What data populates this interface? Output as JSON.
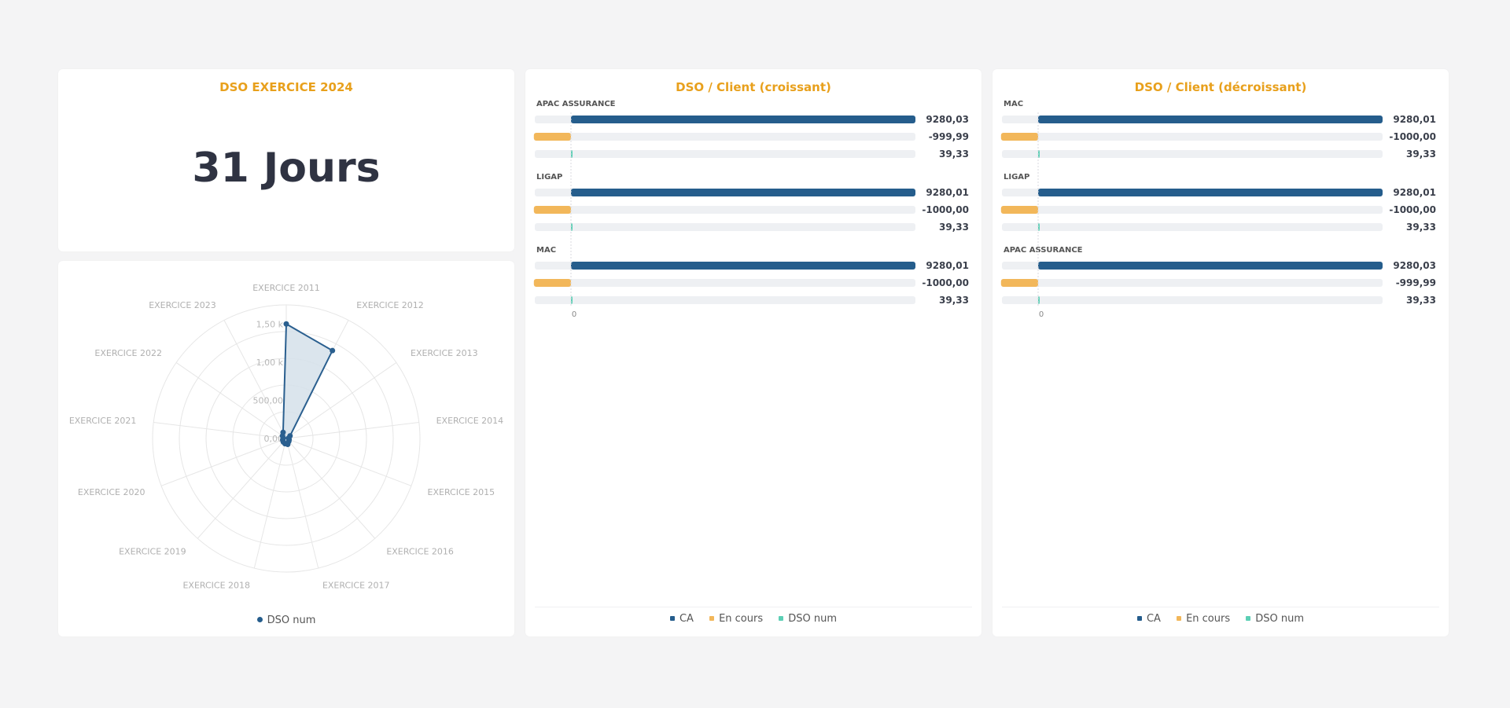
{
  "colors": {
    "title": "#e8a01c",
    "ca": "#255d8c",
    "en_cours": "#f2b75a",
    "dso": "#5ccfb5",
    "track": "#eef0f3",
    "radar_line": "#2a5f8f",
    "radar_fill": "#d5e0ea"
  },
  "kpi": {
    "title": "DSO EXERCICE 2024",
    "value": "31 Jours"
  },
  "radar": {
    "legend": "DSO num",
    "axis_labels": [
      "EXERCICE 2011",
      "EXERCICE 2012",
      "EXERCICE 2013",
      "EXERCICE 2014",
      "EXERCICE 2015",
      "EXERCICE 2016",
      "EXERCICE 2017",
      "EXERCICE 2018",
      "EXERCICE 2019",
      "EXERCICE 2020",
      "EXERCICE 2021",
      "EXERCICE 2022",
      "EXERCICE 2023"
    ],
    "tick_labels": [
      "0,00",
      "500,00",
      "1,00 k",
      "1,50 k"
    ]
  },
  "bars_asc": {
    "title": "DSO / Client (croissant)",
    "axis_zero": "0",
    "legend": [
      "CA",
      "En cours",
      "DSO num"
    ]
  },
  "bars_desc": {
    "title": "DSO / Client (décroissant)",
    "axis_zero": "0",
    "legend": [
      "CA",
      "En cours",
      "DSO num"
    ]
  },
  "chart_data": [
    {
      "type": "radar",
      "series": [
        {
          "name": "DSO num",
          "values": [
            1500,
            1300,
            60,
            30,
            40,
            50,
            80,
            70,
            60,
            50,
            40,
            60,
            90
          ]
        }
      ],
      "categories": [
        "EXERCICE 2011",
        "EXERCICE 2012",
        "EXERCICE 2013",
        "EXERCICE 2014",
        "EXERCICE 2015",
        "EXERCICE 2016",
        "EXERCICE 2017",
        "EXERCICE 2018",
        "EXERCICE 2019",
        "EXERCICE 2020",
        "EXERCICE 2021",
        "EXERCICE 2022",
        "EXERCICE 2023"
      ],
      "rmax": 1750
    },
    {
      "type": "bar",
      "orientation": "horizontal",
      "title": "DSO / Client (croissant)",
      "categories": [
        "APAC ASSURANCE",
        "LIGAP",
        "MAC"
      ],
      "series": [
        {
          "name": "CA",
          "values": [
            9280.03,
            9280.01,
            9280.01
          ],
          "labels": [
            "9280,03",
            "9280,01",
            "9280,01"
          ]
        },
        {
          "name": "En cours",
          "values": [
            -999.99,
            -1000.0,
            -1000.0
          ],
          "labels": [
            "-999,99",
            "-1000,00",
            "-1000,00"
          ]
        },
        {
          "name": "DSO num",
          "values": [
            39.33,
            39.33,
            39.33
          ],
          "labels": [
            "39,33",
            "39,33",
            "39,33"
          ]
        }
      ],
      "xlim": [
        -1000,
        9280.03
      ]
    },
    {
      "type": "bar",
      "orientation": "horizontal",
      "title": "DSO / Client (décroissant)",
      "categories": [
        "MAC",
        "LIGAP",
        "APAC ASSURANCE"
      ],
      "series": [
        {
          "name": "CA",
          "values": [
            9280.01,
            9280.01,
            9280.03
          ],
          "labels": [
            "9280,01",
            "9280,01",
            "9280,03"
          ]
        },
        {
          "name": "En cours",
          "values": [
            -1000.0,
            -1000.0,
            -999.99
          ],
          "labels": [
            "-1000,00",
            "-1000,00",
            "-999,99"
          ]
        },
        {
          "name": "DSO num",
          "values": [
            39.33,
            39.33,
            39.33
          ],
          "labels": [
            "39,33",
            "39,33",
            "39,33"
          ]
        }
      ],
      "xlim": [
        -1000,
        9280.03
      ]
    }
  ]
}
